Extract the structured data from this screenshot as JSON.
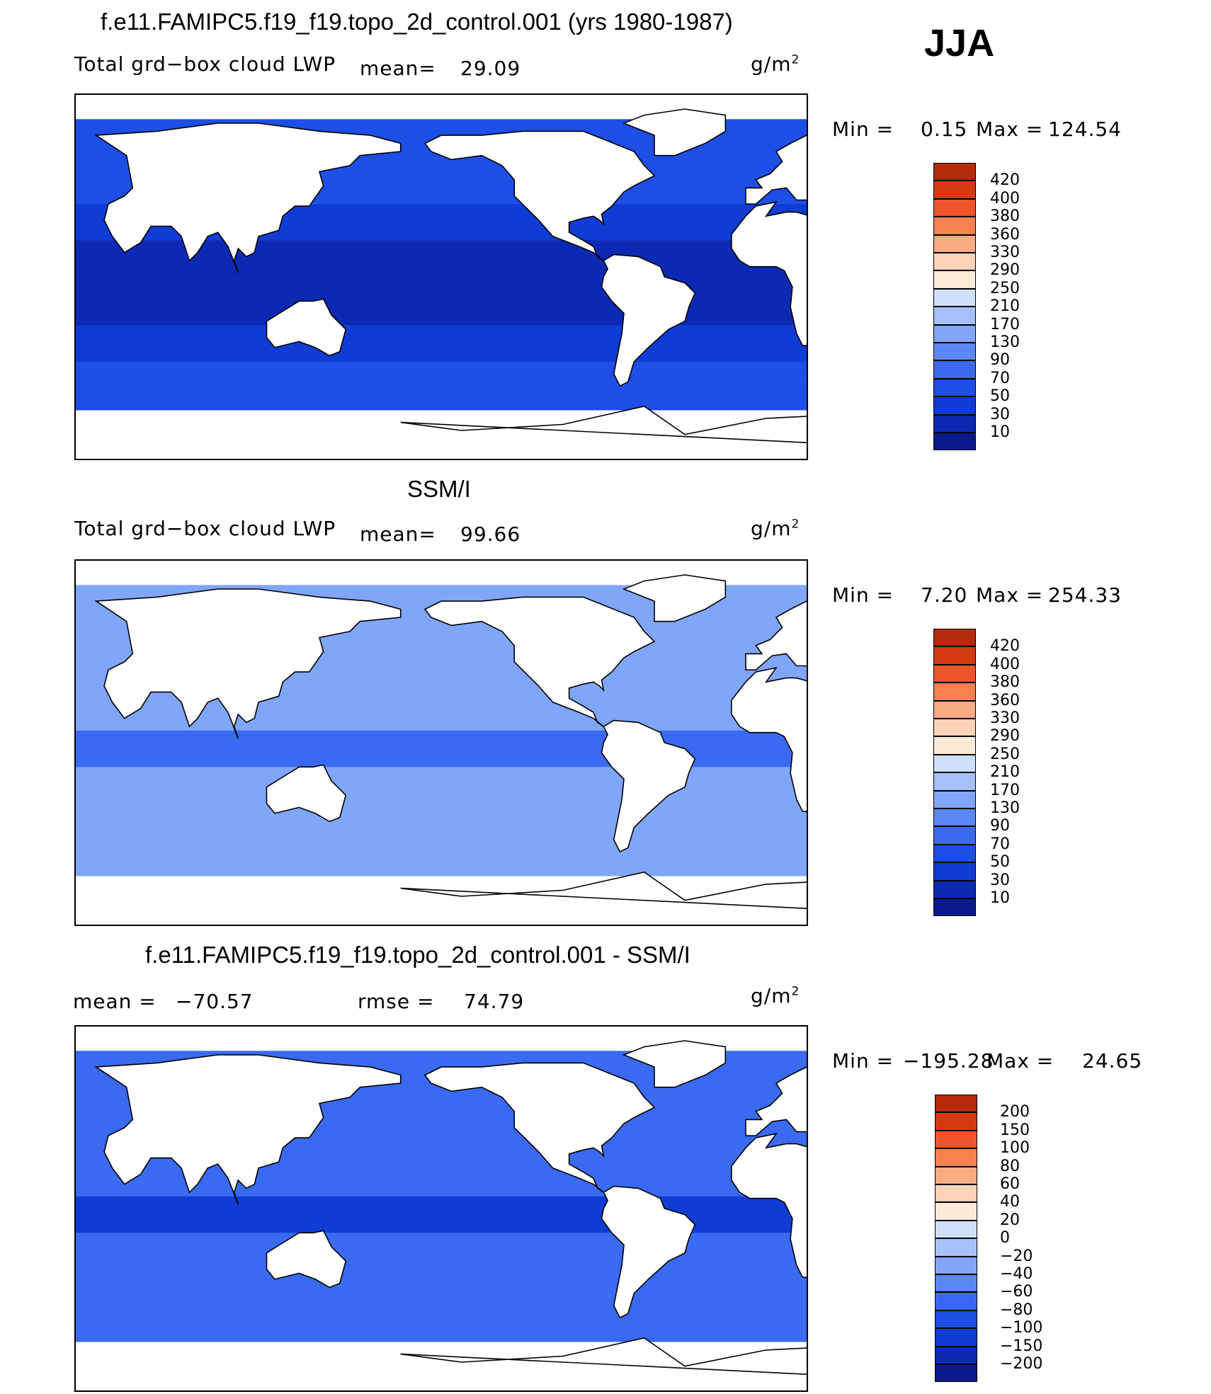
{
  "season": "JJA",
  "colors": {
    "pos_scale": [
      "#0a1a8c",
      "#0b2ab4",
      "#0f3cd4",
      "#1d4ee6",
      "#3a6af0",
      "#5b88f5",
      "#80a6fa",
      "#a6c2fb",
      "#cfe0fc",
      "#fcebd8",
      "#fcd3b8",
      "#f9ab84",
      "#f6804f",
      "#f0552a",
      "#d63a12",
      "#b52a08",
      "#801004"
    ],
    "diff_scale": [
      "#0a1a8c",
      "#0b2ab4",
      "#0f3cd4",
      "#1d4ee6",
      "#3a6af0",
      "#5b88f5",
      "#80a6fa",
      "#a6c2fb",
      "#cfe0fc",
      "#fcebd8",
      "#fcd3b8",
      "#f9ab84",
      "#f6804f",
      "#f0552a",
      "#d63a12",
      "#b52a08",
      "#801004"
    ]
  },
  "chart_data": [
    {
      "type": "heatmap",
      "title": "f.e11.FAMIPC5.f19_f19.topo_2d_control.001 (yrs 1980-1987)",
      "variable": "Total grd−box cloud LWP",
      "mean_label": "mean=",
      "mean_value": "29.09",
      "units": "g/m",
      "units_sup": "2",
      "min_label": "Min  =",
      "min_value": "0.15",
      "max_label": "Max  =",
      "max_value": "124.54",
      "levels": [
        "420",
        "400",
        "380",
        "360",
        "330",
        "290",
        "250",
        "210",
        "170",
        "130",
        "90",
        "70",
        "50",
        "30",
        "10"
      ],
      "mean_field": 29.09
    },
    {
      "type": "heatmap",
      "title": "SSM/I",
      "variable": "Total grd−box cloud LWP",
      "mean_label": "mean=",
      "mean_value": "99.66",
      "units": "g/m",
      "units_sup": "2",
      "min_label": "Min  =",
      "min_value": "7.20",
      "max_label": "Max  =",
      "max_value": "254.33",
      "levels": [
        "420",
        "400",
        "380",
        "360",
        "330",
        "290",
        "250",
        "210",
        "170",
        "130",
        "90",
        "70",
        "50",
        "30",
        "10"
      ],
      "mean_field": 99.66
    },
    {
      "type": "heatmap",
      "title": "f.e11.FAMIPC5.f19_f19.topo_2d_control.001 - SSM/I",
      "mean_label": "mean  =",
      "mean_value": "−70.57",
      "rmse_label": "rmse  =",
      "rmse_value": "74.79",
      "units": "g/m",
      "units_sup": "2",
      "min_label": "Min  =",
      "min_value": "−195.28",
      "max_label": "Max  =",
      "max_value": "24.65",
      "levels": [
        "200",
        "150",
        "100",
        "80",
        "60",
        "40",
        "20",
        "0",
        "−20",
        "−40",
        "−60",
        "−80",
        "−100",
        "−150",
        "−200"
      ],
      "mean_field": -70.57
    }
  ]
}
